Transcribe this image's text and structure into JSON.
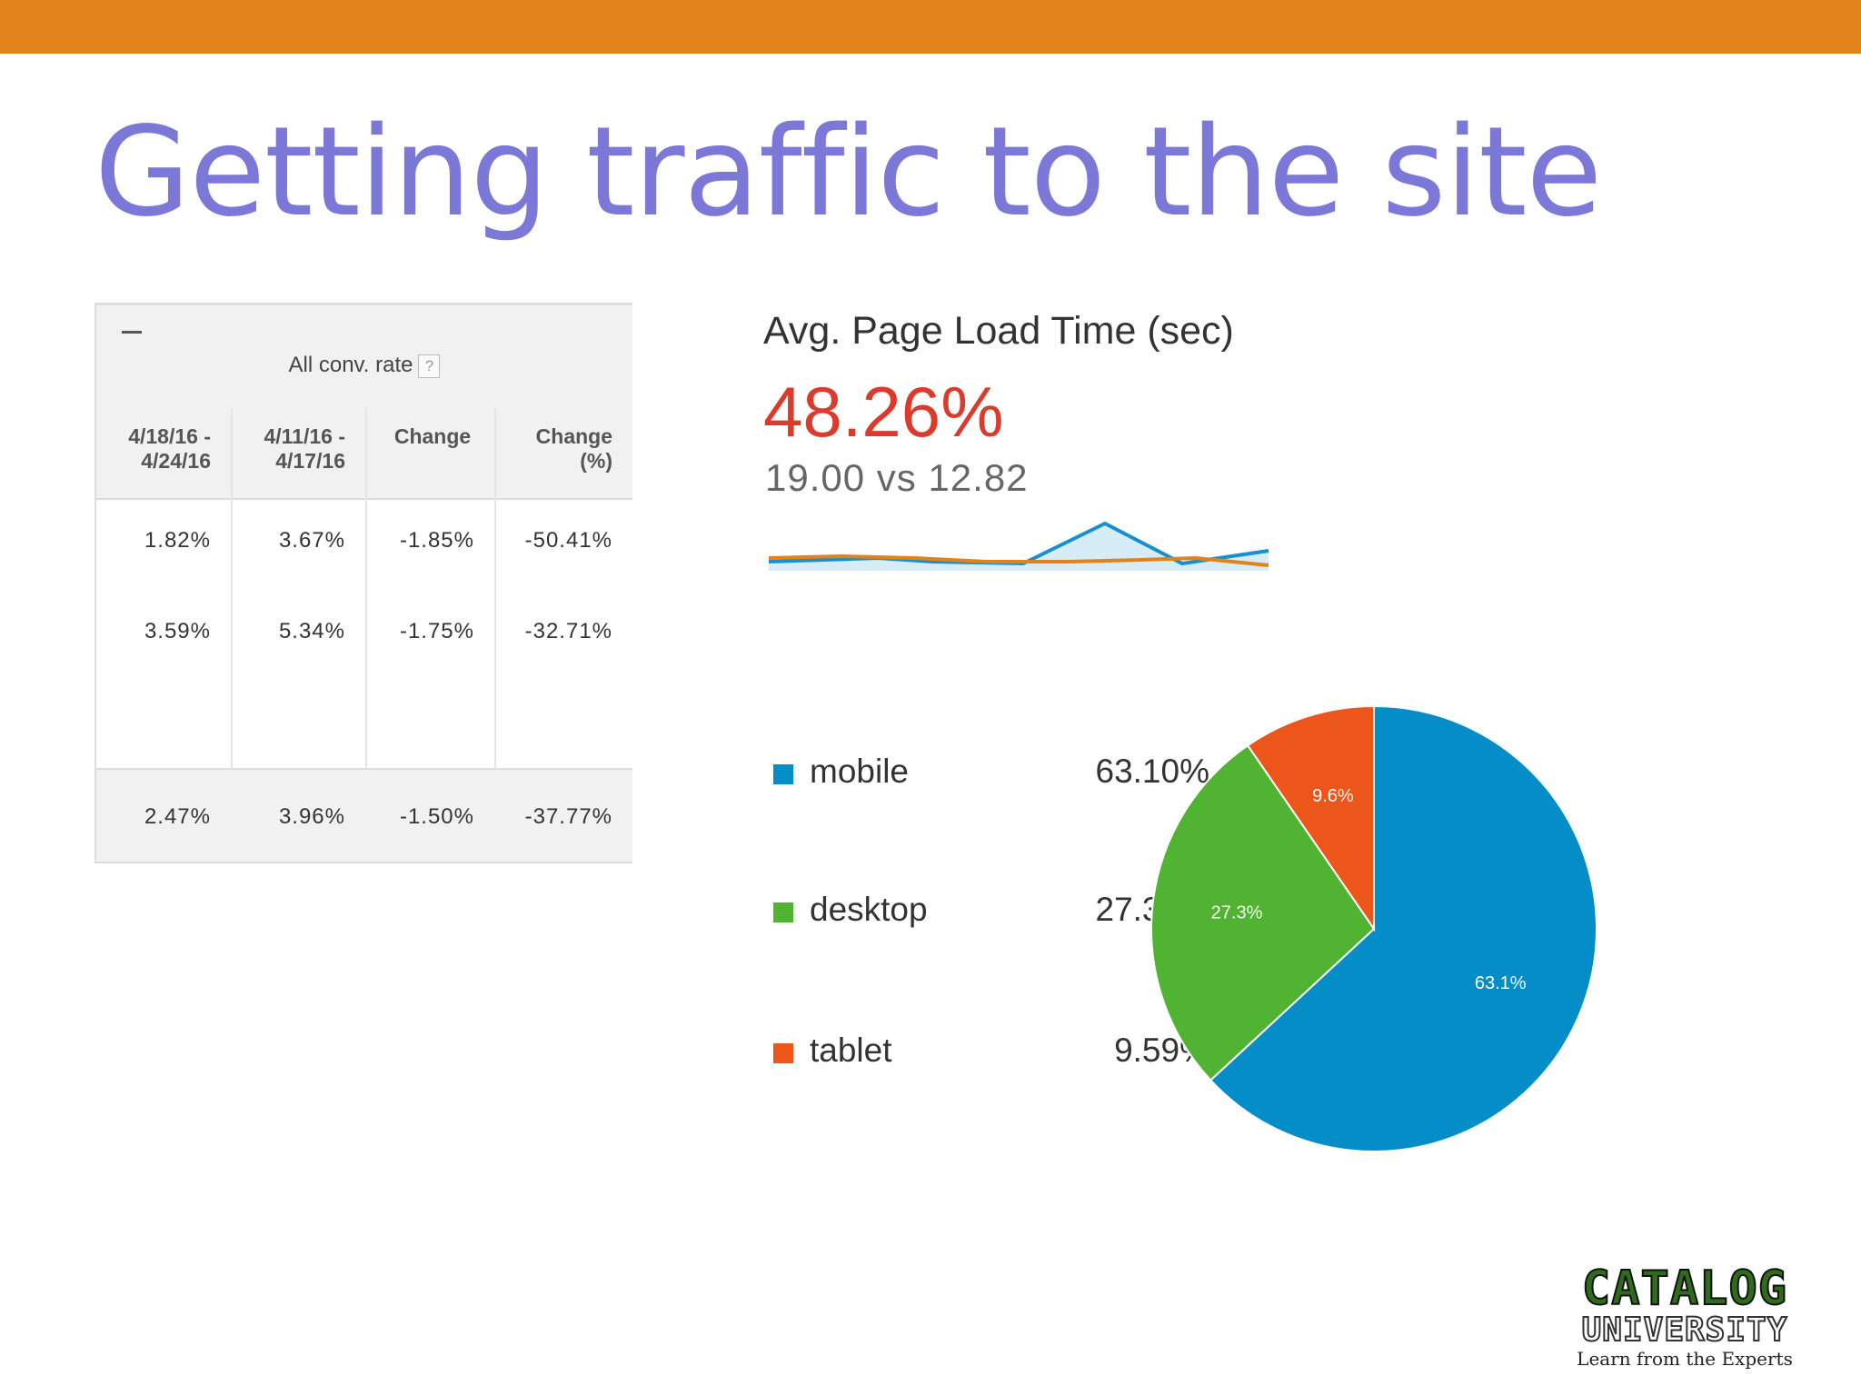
{
  "slide": {
    "title": "Getting traffic to the site",
    "accent_color": "#e2821a",
    "title_color": "#7b78d8"
  },
  "conv_table": {
    "group_label": "All conv. rate",
    "help_icon_label": "?",
    "columns": [
      [
        "4/18/16 -",
        "4/24/16"
      ],
      [
        "4/11/16 -",
        "4/17/16"
      ],
      [
        "Change"
      ],
      [
        "Change",
        "(%)"
      ]
    ],
    "rows": [
      [
        "1.82%",
        "3.67%",
        "-1.85%",
        "-50.41%"
      ],
      [
        "3.59%",
        "5.34%",
        "-1.75%",
        "-32.71%"
      ]
    ],
    "total_row": [
      "2.47%",
      "3.96%",
      "-1.50%",
      "-37.77%"
    ]
  },
  "load_time": {
    "title": "Avg. Page Load Time (sec)",
    "change_pct": "48.26%",
    "comparison": "19.00 vs 12.82",
    "current_color": "#1a8fcf",
    "previous_color": "#e2821a"
  },
  "chart_data": {
    "type": "pie",
    "title": "",
    "categories": [
      "mobile",
      "desktop",
      "tablet"
    ],
    "values": [
      63.1,
      27.3,
      9.59
    ],
    "value_labels": [
      "63.10%",
      "27.30%",
      "9.59%"
    ],
    "slice_labels": [
      "63.1%",
      "27.3%",
      "9.6%"
    ],
    "colors": [
      "#058dc7",
      "#50b432",
      "#ed561b"
    ],
    "legend": "left"
  },
  "logo": {
    "line1": "CATALOG",
    "line2": "UNIVERSITY",
    "line3": "Learn from the Experts"
  }
}
